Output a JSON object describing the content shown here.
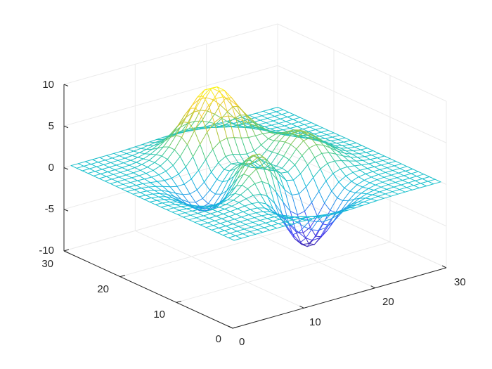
{
  "chart_data": {
    "type": "mesh",
    "function": "peaks",
    "grid": {
      "rows": 30,
      "cols": 30,
      "x_range": [
        1,
        30
      ],
      "y_range": [
        1,
        30
      ]
    },
    "xlim": [
      0,
      30
    ],
    "ylim": [
      0,
      30
    ],
    "zlim": [
      -10,
      10
    ],
    "x_ticks": [
      "0",
      "10",
      "20",
      "30"
    ],
    "y_ticks": [
      "0",
      "10",
      "20",
      "30"
    ],
    "z_ticks": [
      "10",
      "5",
      "0",
      "-5",
      "-10"
    ],
    "features": [
      {
        "kind": "max",
        "z": 8.1
      },
      {
        "kind": "min",
        "z": -6.5
      }
    ],
    "colormap": "parula",
    "colormap_stops": [
      "#3e26a8",
      "#4743f8",
      "#2797eb",
      "#13bed6",
      "#48cb86",
      "#b6c432",
      "#f9d038",
      "#f9fb0e"
    ],
    "gridlines": true,
    "box": false
  }
}
